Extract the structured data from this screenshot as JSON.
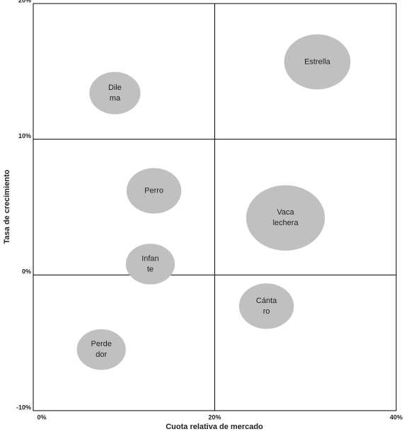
{
  "chart_data": {
    "type": "bubble",
    "x_label": "Cuota relativa de mercado",
    "y_label": "Tasa de crecimiento",
    "labels": [
      [
        "Estrella"
      ],
      [
        "Dile",
        "ma"
      ],
      [
        "Perro"
      ],
      [
        "Vaca",
        "lechera"
      ],
      [
        "Infan",
        "te"
      ],
      [
        "Cánta",
        "ro"
      ],
      [
        "Perde",
        "dor"
      ]
    ],
    "x": [
      31.3,
      9.0,
      13.3,
      27.8,
      12.9,
      25.7,
      7.5
    ],
    "values": [
      15.7,
      13.4,
      6.2,
      4.2,
      0.8,
      -2.3,
      -5.5
    ],
    "sizes": [
      22,
      13,
      15,
      31,
      12,
      15,
      12
    ],
    "color": "#c0c0c0",
    "xlim": [
      0,
      40
    ],
    "xticks": [
      {
        "value": 0,
        "label": "0%"
      },
      {
        "value": 20,
        "label": "20%"
      },
      {
        "value": 40,
        "label": "40%"
      }
    ],
    "ylim": [
      -10,
      20
    ],
    "yticks": [
      {
        "value": -10,
        "label": "-10%"
      },
      {
        "value": 0,
        "label": "0%"
      },
      {
        "value": 10,
        "label": "10%"
      },
      {
        "value": 20,
        "label": "20%"
      }
    ],
    "grid": true
  }
}
